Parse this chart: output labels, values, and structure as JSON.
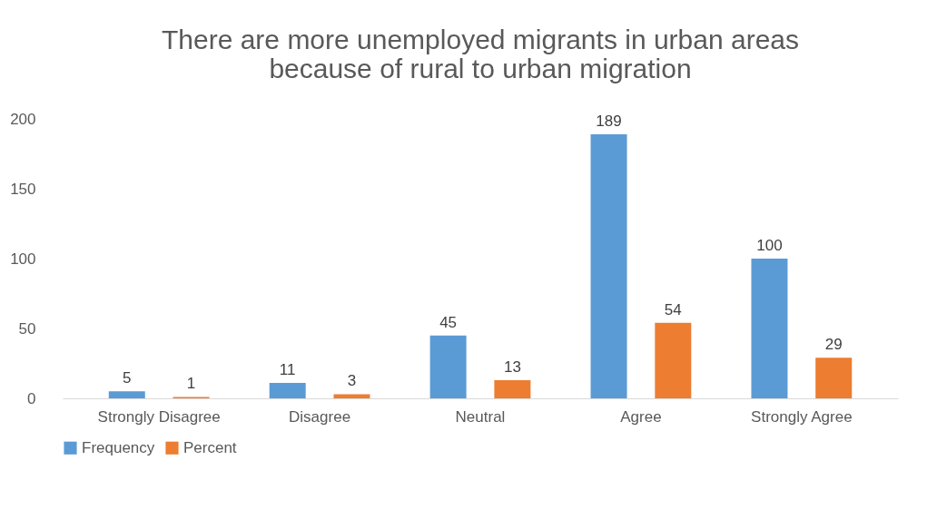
{
  "chart_data": {
    "type": "bar",
    "title": "There are more unemployed migrants in urban areas because of rural to urban migration",
    "categories": [
      "Strongly Disagree",
      "Disagree",
      "Neutral",
      "Agree",
      "Strongly Agree"
    ],
    "series": [
      {
        "name": "Frequency",
        "color": "#5b9bd5",
        "values": [
          5,
          11,
          45,
          189,
          100
        ]
      },
      {
        "name": "Percent",
        "color": "#ed7d31",
        "values": [
          1,
          3,
          13,
          54,
          29
        ]
      }
    ],
    "ylim": [
      0,
      200
    ],
    "yticks": [
      0,
      50,
      100,
      150,
      200
    ],
    "grid": false,
    "legend": "bottom",
    "data_labels": true
  }
}
